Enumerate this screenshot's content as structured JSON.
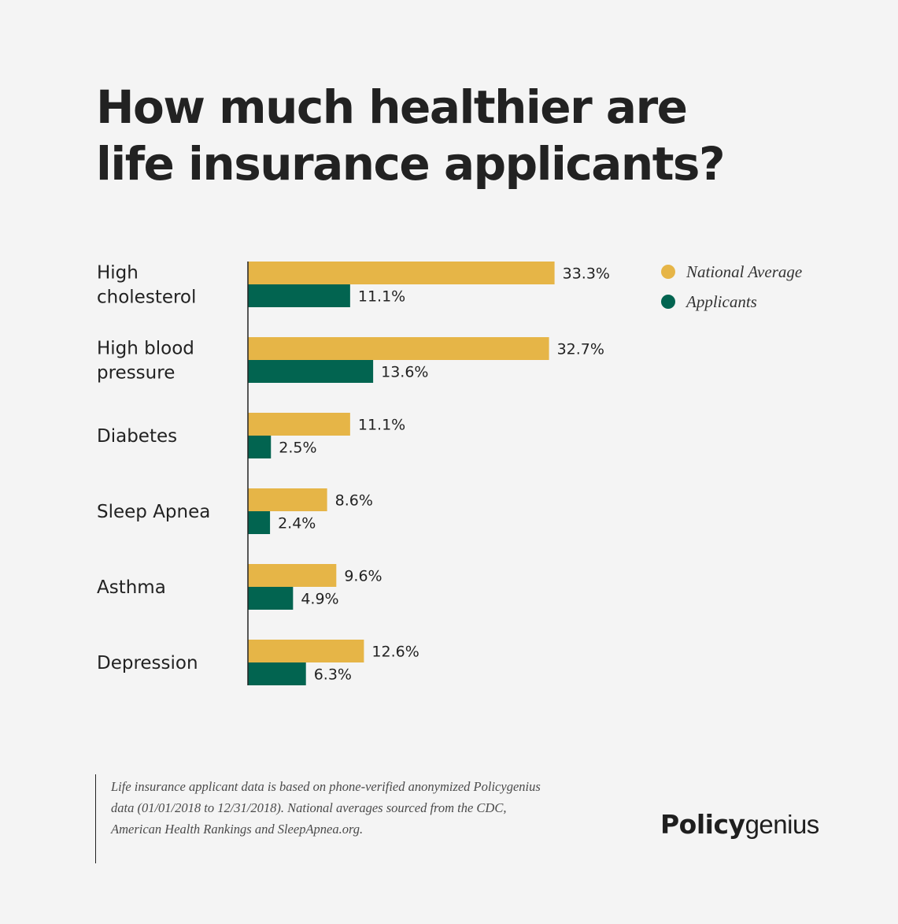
{
  "title": {
    "line1": "How much healthier are",
    "line2": "life insurance applicants?"
  },
  "legend": [
    {
      "label": "National Average",
      "color": "#e6b547"
    },
    {
      "label": "Applicants",
      "color": "#026450"
    }
  ],
  "chart_data": {
    "type": "bar",
    "orientation": "horizontal",
    "title": "How much healthier are life insurance applicants?",
    "categories": [
      [
        "High",
        "cholesterol"
      ],
      [
        "High blood",
        "pressure"
      ],
      [
        "Diabetes"
      ],
      [
        "Sleep Apnea"
      ],
      [
        "Asthma"
      ],
      [
        "Depression"
      ]
    ],
    "series": [
      {
        "name": "National Average",
        "color": "#e6b547",
        "values": [
          33.3,
          32.7,
          11.1,
          8.6,
          9.6,
          12.6
        ],
        "labels": [
          "33.3%",
          "32.7%",
          "11.1%",
          "8.6%",
          "9.6%",
          "12.6%"
        ]
      },
      {
        "name": "Applicants",
        "color": "#026450",
        "values": [
          11.1,
          13.6,
          2.5,
          2.4,
          4.9,
          6.3
        ],
        "labels": [
          "11.1%",
          "13.6%",
          "2.5%",
          "2.4%",
          "4.9%",
          "6.3%"
        ]
      }
    ],
    "unit": "%",
    "xlim": [
      0,
      40
    ],
    "grid": false,
    "legend_position": "top-right"
  },
  "footnote": {
    "line1": "Life insurance applicant data is based on phone-verified anonymized Policygenius",
    "line2": "data (01/01/2018 to 12/31/2018). National averages sourced from the CDC,",
    "line3": "American Health Rankings and SleepApnea.org."
  },
  "brand": {
    "strong": "Policy",
    "light": "genius"
  }
}
